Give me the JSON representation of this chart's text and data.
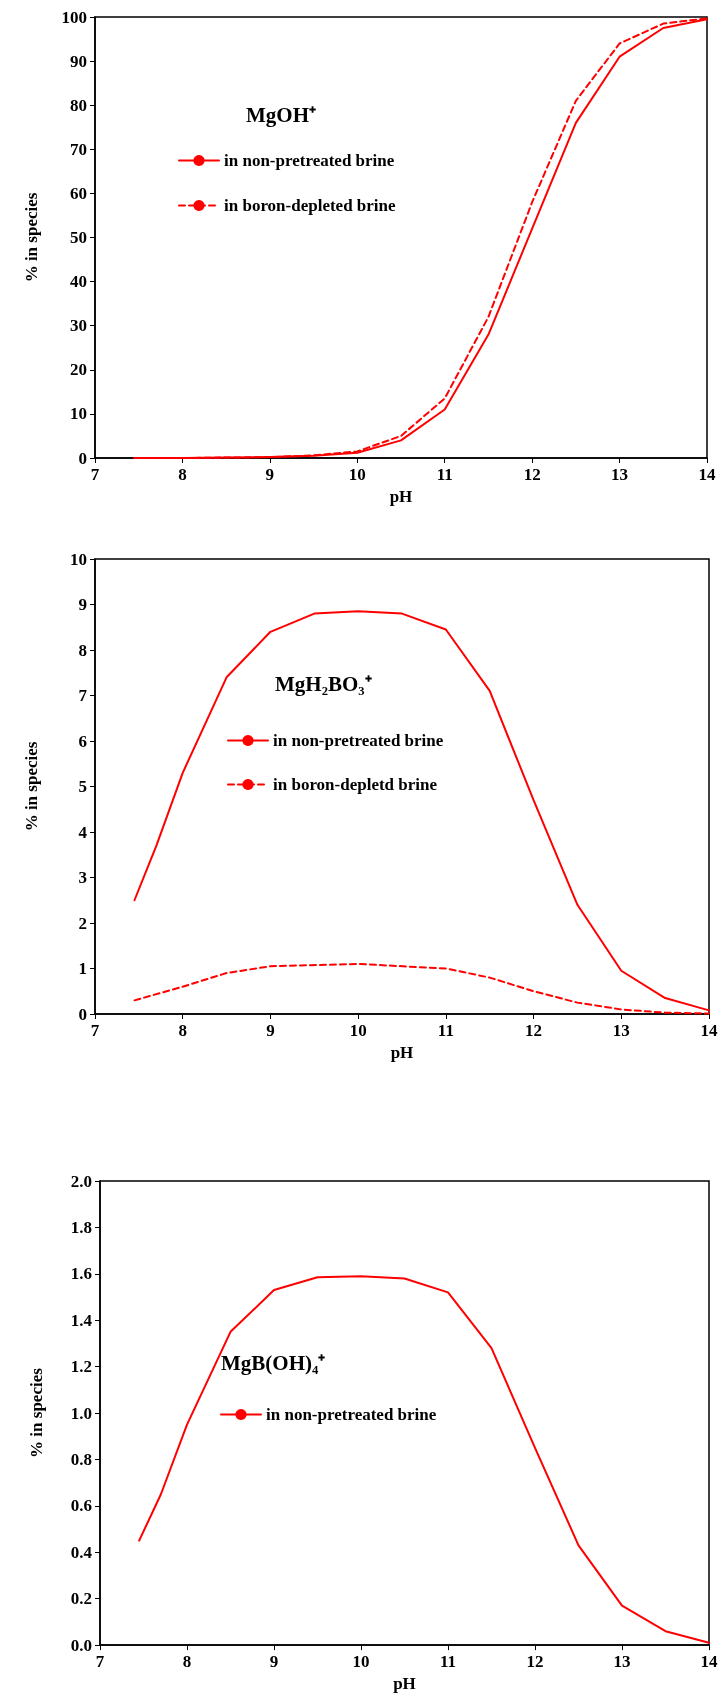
{
  "chart_data": [
    {
      "type": "line",
      "title": "MgOH⁺",
      "xlabel": "pH",
      "ylabel": "% in species",
      "xlim": [
        7,
        14
      ],
      "xticks": [
        7,
        8,
        9,
        10,
        11,
        12,
        13,
        14
      ],
      "ylim": [
        0,
        100
      ],
      "yticks": [
        0,
        10,
        20,
        30,
        40,
        50,
        60,
        70,
        80,
        90,
        100
      ],
      "grid": false,
      "legend": "left",
      "marker": "none",
      "series": [
        {
          "name": "in non-pretreated brine",
          "color": "#ff0000",
          "line_style": "solid",
          "x": [
            7.45,
            8,
            8.5,
            9,
            9.5,
            10,
            10.5,
            11,
            11.5,
            12,
            12.5,
            13,
            13.5,
            14
          ],
          "values": [
            0,
            0,
            0.1,
            0.2,
            0.5,
            1.2,
            4,
            11,
            28,
            52,
            76,
            91,
            97.5,
            99.5
          ]
        },
        {
          "name": "in boron-depleted brine",
          "color": "#ff0000",
          "line_style": "dashed",
          "x": [
            7.45,
            8,
            8.5,
            9,
            9.5,
            10,
            10.5,
            11,
            11.5,
            12,
            12.5,
            13,
            13.5,
            14
          ],
          "values": [
            0,
            0,
            0.1,
            0.2,
            0.6,
            1.5,
            5,
            13.5,
            32,
            58,
            81,
            94,
            98.5,
            99.7
          ]
        }
      ]
    },
    {
      "type": "line",
      "title": "MgH₂BO₃⁺",
      "xlabel": "pH",
      "ylabel": "% in species",
      "xlim": [
        7,
        14
      ],
      "xticks": [
        7,
        8,
        9,
        10,
        11,
        12,
        13,
        14
      ],
      "ylim": [
        0,
        10
      ],
      "yticks": [
        0,
        1,
        2,
        3,
        4,
        5,
        6,
        7,
        8,
        9,
        10
      ],
      "grid": false,
      "legend": "left",
      "marker": "none",
      "series": [
        {
          "name": "in non-pretreated brine",
          "color": "#ff0000",
          "line_style": "solid",
          "x": [
            7.45,
            7.7,
            8,
            8.5,
            9,
            9.5,
            10,
            10.5,
            11,
            11.5,
            12,
            12.5,
            13,
            13.5,
            14
          ],
          "values": [
            2.5,
            3.7,
            5.3,
            7.4,
            8.4,
            8.8,
            8.85,
            8.8,
            8.45,
            7.1,
            4.7,
            2.4,
            0.95,
            0.35,
            0.08
          ]
        },
        {
          "name": "in boron-depletd brine",
          "color": "#ff0000",
          "line_style": "dashed",
          "x": [
            7.45,
            8,
            8.5,
            9,
            10,
            11,
            11.5,
            12,
            12.5,
            13,
            13.5,
            14
          ],
          "values": [
            0.3,
            0.6,
            0.9,
            1.05,
            1.1,
            1.0,
            0.8,
            0.5,
            0.25,
            0.1,
            0.03,
            0.01
          ]
        }
      ]
    },
    {
      "type": "line",
      "title": "MgB(OH)₄⁺",
      "xlabel": "pH",
      "ylabel": "% in species",
      "xlim": [
        7,
        14
      ],
      "xticks": [
        7,
        8,
        9,
        10,
        11,
        12,
        13,
        14
      ],
      "ylim": [
        0,
        2
      ],
      "yticks": [
        {
          "value": 0,
          "label": "0.0"
        },
        {
          "value": 0.2,
          "label": "0.2"
        },
        {
          "value": 0.4,
          "label": "0.4"
        },
        {
          "value": 0.6,
          "label": "0.6"
        },
        {
          "value": 0.8,
          "label": "0.8"
        },
        {
          "value": 1,
          "label": "1.0"
        },
        {
          "value": 1.2,
          "label": "1.2"
        },
        {
          "value": 1.4,
          "label": "1.4"
        },
        {
          "value": 1.6,
          "label": "1.6"
        },
        {
          "value": 1.8,
          "label": "1.8"
        },
        {
          "value": 2,
          "label": "2.0"
        }
      ],
      "grid": false,
      "legend": "left",
      "marker": "none",
      "series": [
        {
          "name": "in non-pretreated brine",
          "color": "#ff0000",
          "line_style": "solid",
          "x": [
            7.45,
            7.7,
            8,
            8.5,
            9,
            9.5,
            10,
            10.5,
            11,
            11.5,
            12,
            12.5,
            13,
            13.5,
            14
          ],
          "values": [
            0.45,
            0.65,
            0.95,
            1.35,
            1.53,
            1.585,
            1.59,
            1.58,
            1.52,
            1.28,
            0.85,
            0.43,
            0.17,
            0.06,
            0.01
          ]
        }
      ]
    }
  ]
}
